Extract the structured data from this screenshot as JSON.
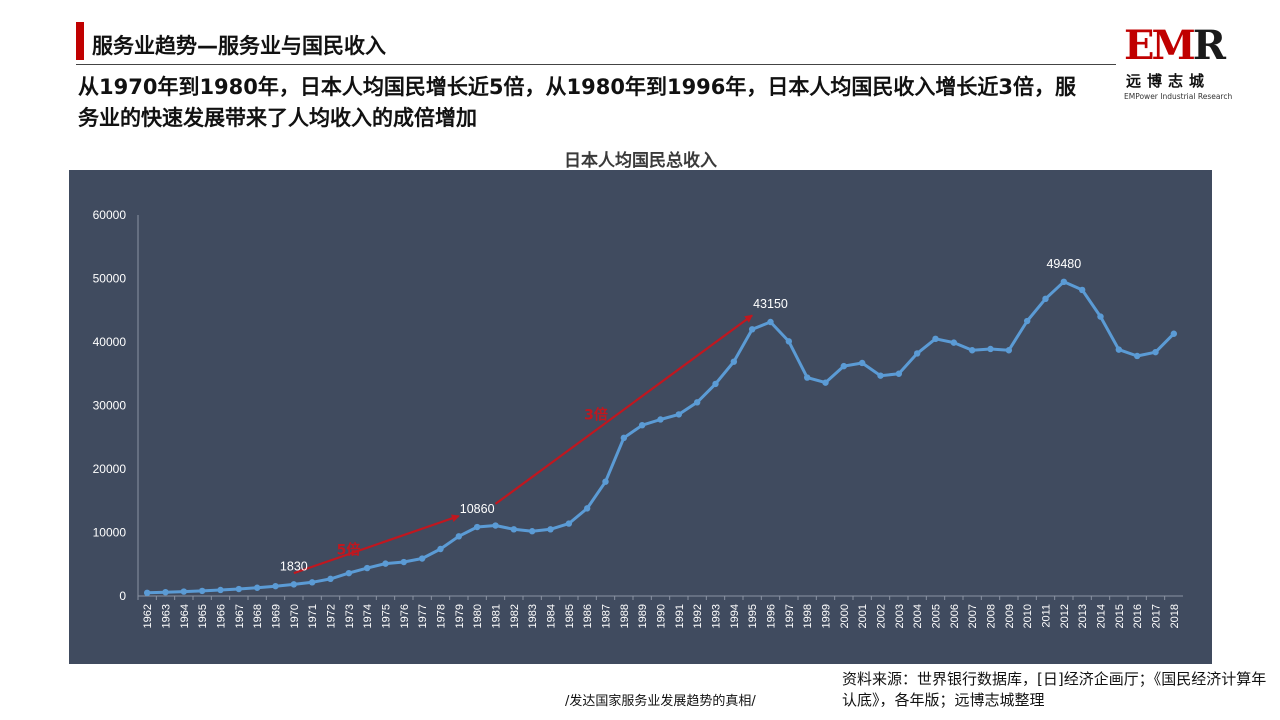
{
  "header": {
    "section_title": "服务业趋势—服务业与国民收入",
    "headline": "从1970年到1980年，日本人均国民增长近5倍，从1980年到1996年，日本人均国民收入增长近3倍，服务业的快速发展带来了人均收入的成倍增加"
  },
  "logo": {
    "mark_e": "E",
    "mark_m": "M",
    "mark_r": "R",
    "cn": "远博志城",
    "en": "EMPower Industrial Research"
  },
  "colors": {
    "accent": "#c00000",
    "panel": "#404b5f",
    "line": "#5b9bd5",
    "arrow": "#c0171f"
  },
  "chart_data": {
    "type": "line",
    "title": "日本人均国民总收入",
    "xlabel": "",
    "ylabel": "",
    "ylim": [
      0,
      60000
    ],
    "yticks": [
      0,
      10000,
      20000,
      30000,
      40000,
      50000,
      60000
    ],
    "grid": false,
    "legend": "none",
    "x": [
      "1962",
      "1963",
      "1964",
      "1965",
      "1966",
      "1967",
      "1968",
      "1969",
      "1970",
      "1971",
      "1972",
      "1973",
      "1974",
      "1975",
      "1976",
      "1977",
      "1978",
      "1979",
      "1980",
      "1981",
      "1982",
      "1983",
      "1984",
      "1985",
      "1986",
      "1987",
      "1988",
      "1989",
      "1990",
      "1991",
      "1992",
      "1993",
      "1994",
      "1995",
      "1996",
      "1997",
      "1998",
      "1999",
      "2000",
      "2001",
      "2002",
      "2003",
      "2004",
      "2005",
      "2006",
      "2007",
      "2008",
      "2009",
      "2010",
      "2011",
      "2012",
      "2013",
      "2014",
      "2015",
      "2016",
      "2017",
      "2018"
    ],
    "series": [
      {
        "values": [
          500,
          600,
          700,
          800,
          950,
          1100,
          1300,
          1550,
          1830,
          2150,
          2700,
          3600,
          4400,
          5100,
          5350,
          5900,
          7400,
          9400,
          10860,
          11100,
          10500,
          10200,
          10500,
          11400,
          13800,
          18000,
          24900,
          26900,
          27800,
          28600,
          30500,
          33400,
          36900,
          42000,
          43150,
          40100,
          34400,
          33600,
          36200,
          36700,
          34700,
          35000,
          38200,
          40500,
          39900,
          38700,
          38900,
          38700,
          43300,
          46800,
          49480,
          48200,
          44000,
          38800,
          37800,
          38400,
          41300
        ]
      }
    ],
    "data_labels": [
      {
        "x": "1970",
        "y": 1830,
        "text": "1830"
      },
      {
        "x": "1980",
        "y": 10860,
        "text": "10860"
      },
      {
        "x": "1996",
        "y": 43150,
        "text": "43150"
      },
      {
        "x": "2012",
        "y": 49480,
        "text": "49480"
      }
    ],
    "annotations": [
      {
        "text": "5倍",
        "from": {
          "x": "1970",
          "y": 3600
        },
        "to": {
          "x": "1979",
          "y": 12600
        }
      },
      {
        "text": "3倍",
        "from": {
          "x": "1981",
          "y": 14500
        },
        "to": {
          "x": "1995",
          "y": 44200
        }
      }
    ]
  },
  "footer": {
    "series_label": "/发达国家服务业发展趋势的真相/",
    "source": "资料来源：世界银行数据库，[日]经济企画厅；《国民经济计算年认底》，各年版；远博志城整理"
  }
}
